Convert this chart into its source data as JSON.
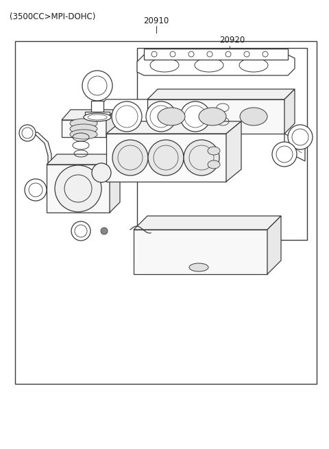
{
  "title_text": "(3500CC>MPI-DOHC)",
  "label_20910": "20910",
  "label_20920": "20920",
  "bg_color": "#ffffff",
  "line_color": "#3a3a3a",
  "text_color": "#1a1a1a",
  "figsize": [
    4.8,
    6.55
  ],
  "dpi": 100
}
